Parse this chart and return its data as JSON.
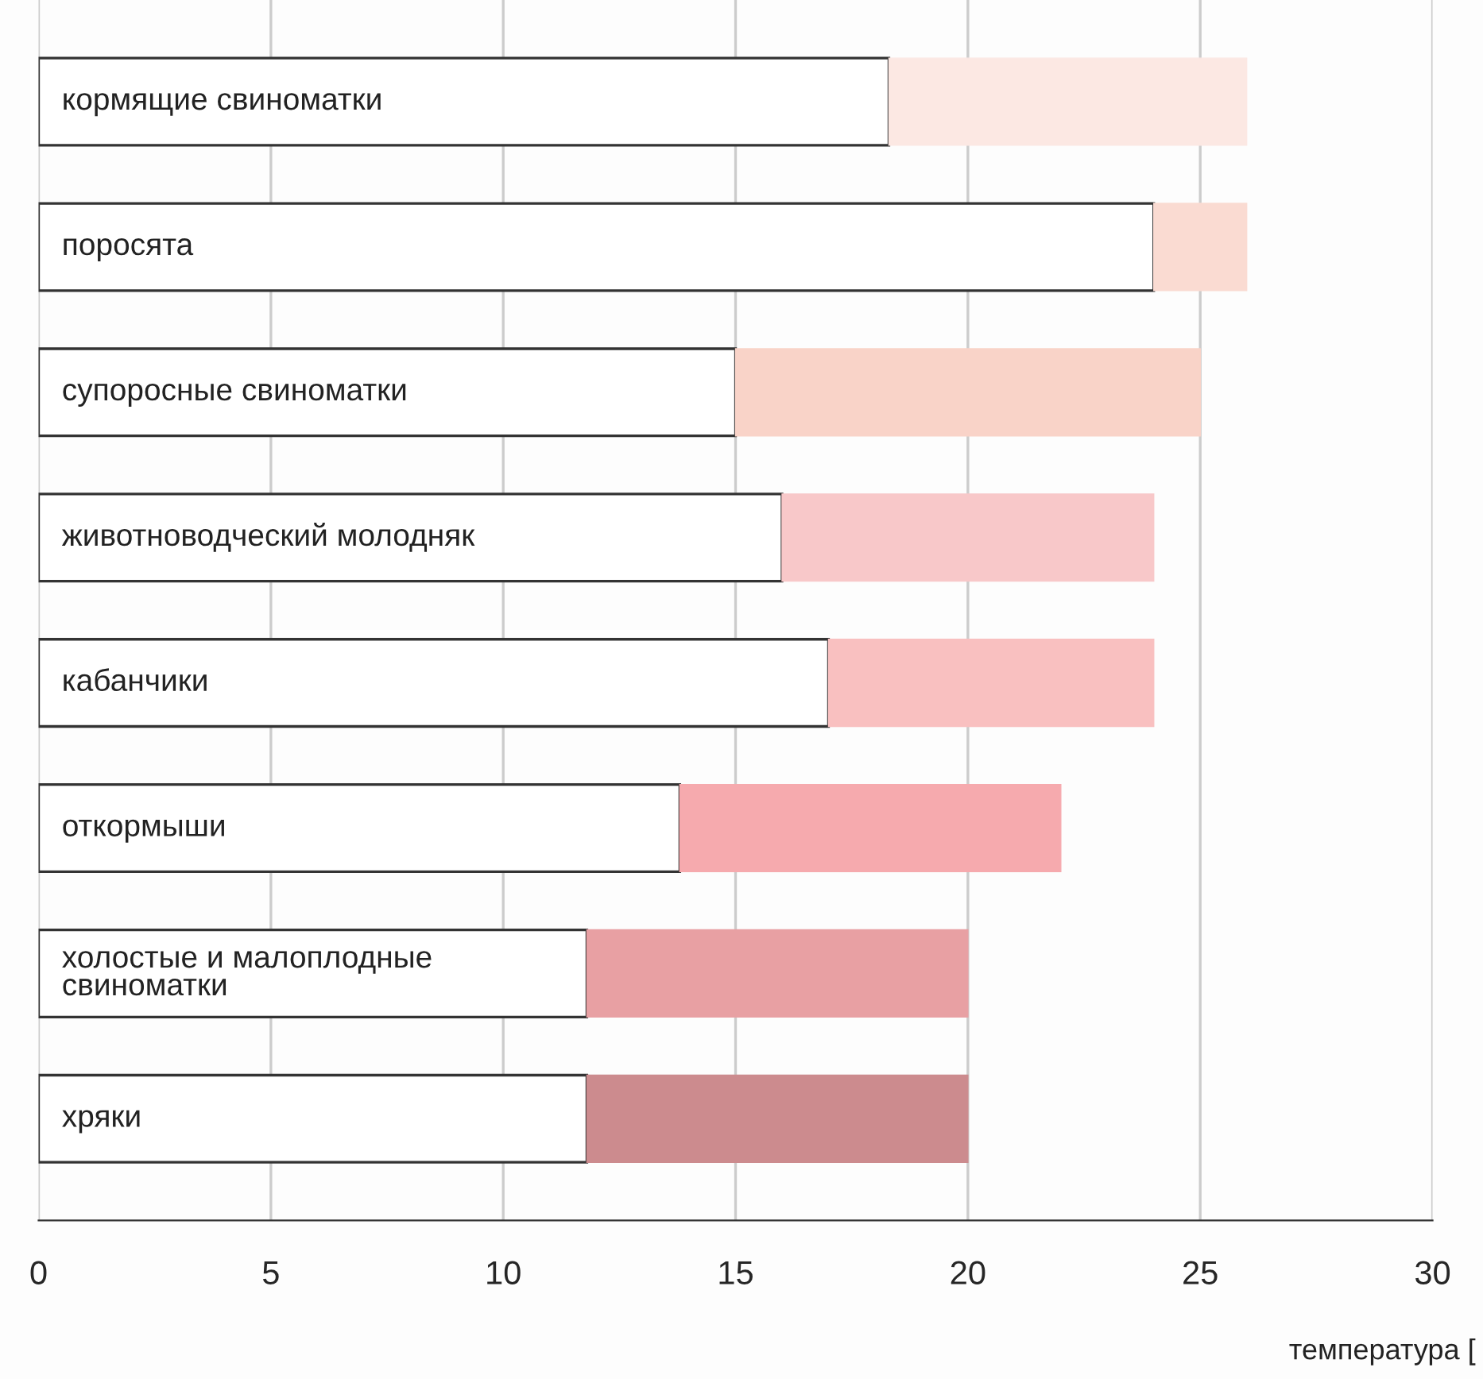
{
  "chart_data": {
    "type": "bar",
    "orientation": "horizontal",
    "stacked": true,
    "xlabel": "температура [",
    "categories": [
      "кормящие свиноматки",
      "поросята",
      "супоросные свиноматки",
      "животноводческий молодняк",
      "кабанчики",
      "откормыши",
      "холостые и малоплодные\nсвиноматки",
      "хряки"
    ],
    "series": [
      {
        "color": "#ffffff",
        "values": [
          18.3,
          24,
          15,
          16,
          17,
          13.8,
          11.8,
          11.8
        ]
      },
      {
        "colors": [
          "#fce8e3",
          "#fadbd2",
          "#f9d3c8",
          "#f8c8c9",
          "#f9c0c0",
          "#f6aaae",
          "#e8a0a3",
          "#cc8b8e"
        ],
        "values": [
          7.7,
          2,
          10,
          8,
          7,
          8.2,
          8.2,
          8.2
        ]
      }
    ],
    "xlim": [
      0,
      30
    ],
    "xticks": [
      0,
      5,
      10,
      15,
      20,
      25,
      30
    ],
    "grid": "x",
    "tick_labels": "x",
    "legend": false
  }
}
